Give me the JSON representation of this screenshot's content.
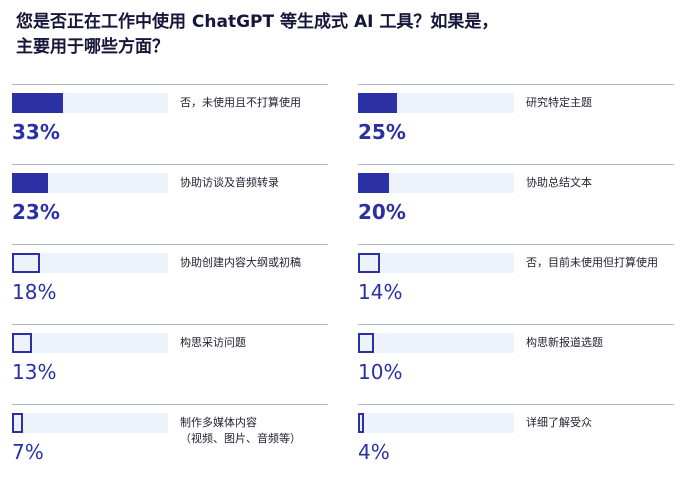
{
  "title_line1": "您是否正在工作中使用 ChatGPT 等生成式 AI 工具？如果是，",
  "title_line2": "主要用于哪些方面？",
  "colors": {
    "bar": "#2b31a5",
    "track": "#eef2fa",
    "rule": "#b4b8c6"
  },
  "chart_data": {
    "type": "bar",
    "title": "您是否正在工作中使用 ChatGPT 等生成式 AI 工具？如果是，主要用于哪些方面？",
    "unit": "%",
    "xlim": [
      0,
      100
    ],
    "items": [
      {
        "label": "否，未使用且不打算使用",
        "value": 33,
        "display": "33%"
      },
      {
        "label": "研究特定主题",
        "value": 25,
        "display": "25%"
      },
      {
        "label": "协助访谈及音频转录",
        "value": 23,
        "display": "23%"
      },
      {
        "label": "协助总结文本",
        "value": 20,
        "display": "20%"
      },
      {
        "label": "协助创建内容大纲或初稿",
        "value": 18,
        "display": "18%"
      },
      {
        "label": "否，目前未使用但打算使用",
        "value": 14,
        "display": "14%"
      },
      {
        "label": "构思采访问题",
        "value": 13,
        "display": "13%"
      },
      {
        "label": "构思新报道选题",
        "value": 10,
        "display": "10%"
      },
      {
        "label": "制作多媒体内容\n（视频、图片、音频等）",
        "value": 7,
        "display": "7%"
      },
      {
        "label": "详细了解受众",
        "value": 4,
        "display": "4%"
      }
    ]
  }
}
